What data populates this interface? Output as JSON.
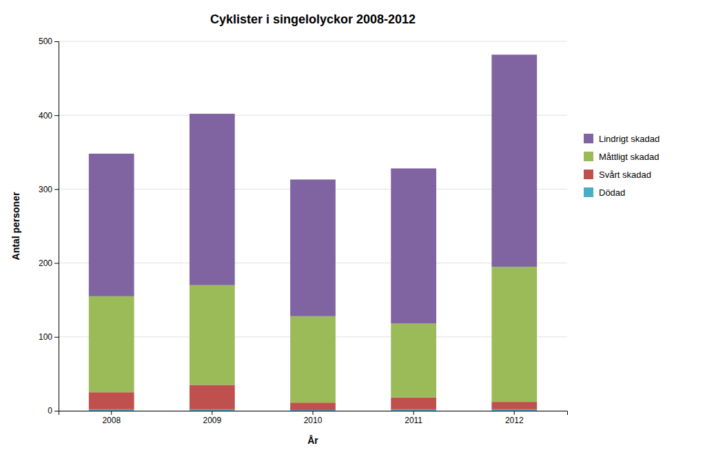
{
  "chart_data": {
    "type": "bar",
    "stacked": true,
    "title": "Cyklister i singelolyckor 2008-2012",
    "xlabel": "År",
    "ylabel": "Antal personer",
    "categories": [
      "2008",
      "2009",
      "2010",
      "2011",
      "2012"
    ],
    "series": [
      {
        "name": "Dödad",
        "color": "#4BACC6",
        "values": [
          2,
          2,
          1,
          2,
          2
        ]
      },
      {
        "name": "Svårt skadad",
        "color": "#C0504D",
        "values": [
          23,
          33,
          10,
          16,
          10
        ]
      },
      {
        "name": "Måttligt skadad",
        "color": "#9BBB59",
        "values": [
          130,
          135,
          117,
          100,
          183
        ]
      },
      {
        "name": "Lindrigt skadad",
        "color": "#8064A2",
        "values": [
          193,
          232,
          185,
          210,
          287
        ]
      }
    ],
    "ylim": [
      0,
      500
    ],
    "yticks": [
      0,
      100,
      200,
      300,
      400,
      500
    ],
    "grid": true,
    "legend": "right"
  }
}
